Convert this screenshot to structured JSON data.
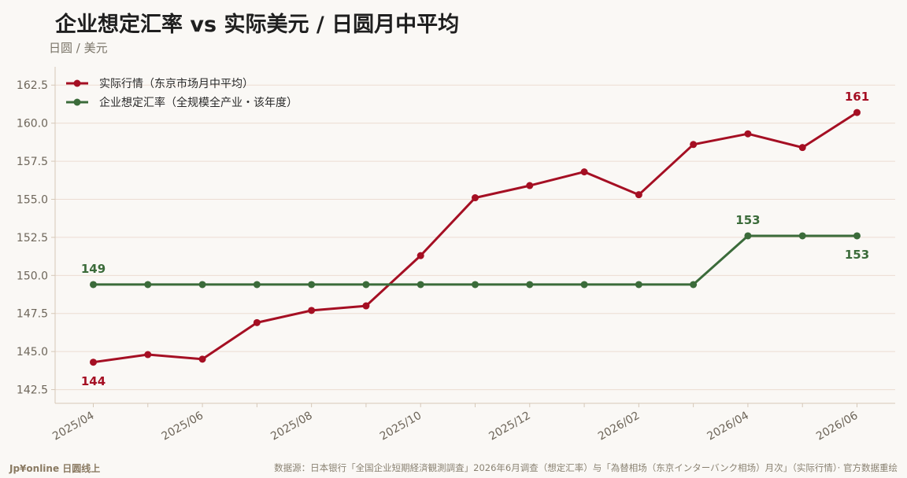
{
  "header": {
    "title": "企业想定汇率 vs 实际美元 / 日圆月中平均",
    "subtitle": "日圆 / 美元"
  },
  "footer": {
    "brand": "Jp¥online 日圆线上",
    "source": "数据源：日本银行「全国企业短期経済観測調査」2026年6月调查（想定汇率）与「為替相场（东京インターバンク相场）月次」（实际行情）· 官方数据重绘"
  },
  "colors": {
    "actual": "#a50f23",
    "assumed": "#3b6b3a",
    "grid": "#ecdcd2",
    "axis": "#d6c8b8",
    "tick_text": "#6e665a"
  },
  "chart_data": {
    "type": "line",
    "x": [
      "2025/04",
      "2025/05",
      "2025/06",
      "2025/07",
      "2025/08",
      "2025/09",
      "2025/10",
      "2025/11",
      "2025/12",
      "2026/01",
      "2026/02",
      "2026/03",
      "2026/04",
      "2026/05",
      "2026/06"
    ],
    "x_tick_labels": [
      "2025/04",
      "2025/06",
      "2025/08",
      "2025/10",
      "2025/12",
      "2026/02",
      "2026/04",
      "2026/06"
    ],
    "y_ticks": [
      "142.5",
      "145.0",
      "147.5",
      "150.0",
      "152.5",
      "155.0",
      "157.5",
      "160.0",
      "162.5"
    ],
    "ylim": [
      141.6,
      163.7
    ],
    "grid": true,
    "legend_position": "top-left",
    "series": [
      {
        "name": "实际行情（东京市场月中平均）",
        "color_key": "actual",
        "values": [
          144.3,
          144.8,
          144.5,
          146.9,
          147.7,
          148.0,
          151.3,
          155.1,
          155.9,
          156.8,
          155.3,
          158.6,
          159.3,
          158.4,
          160.7
        ]
      },
      {
        "name": "企业想定汇率（全规模全产业・该年度）",
        "color_key": "assumed",
        "values": [
          149.4,
          149.4,
          149.4,
          149.4,
          149.4,
          149.4,
          149.4,
          149.4,
          149.4,
          149.4,
          149.4,
          149.4,
          152.6,
          152.6,
          152.6
        ]
      }
    ],
    "annotations": [
      {
        "series": 0,
        "index": 0,
        "text": "144"
      },
      {
        "series": 0,
        "index": 14,
        "text": "161"
      },
      {
        "series": 1,
        "index": 0,
        "text": "149"
      },
      {
        "series": 1,
        "index": 12,
        "text": "153"
      },
      {
        "series": 1,
        "index": 14,
        "text": "153"
      }
    ]
  }
}
